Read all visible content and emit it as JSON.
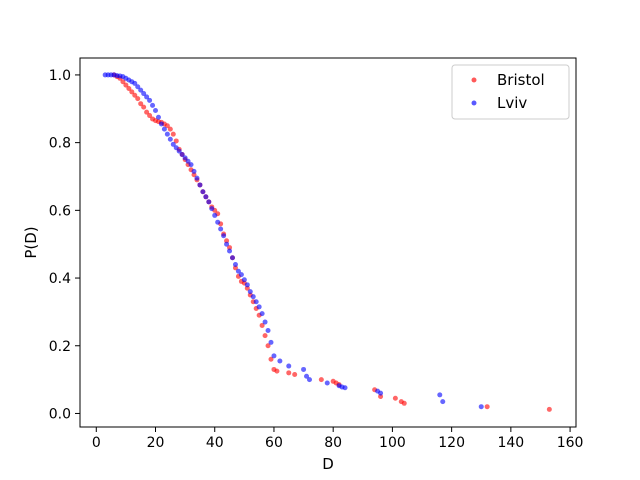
{
  "chart_data": {
    "type": "scatter",
    "title": "",
    "xlabel": "D",
    "ylabel": "P(D)",
    "xlim": [
      -5.5,
      162
    ],
    "ylim": [
      -0.04,
      1.05
    ],
    "xticks": [
      0,
      20,
      40,
      60,
      80,
      100,
      120,
      140,
      160
    ],
    "yticks": [
      0.0,
      0.2,
      0.4,
      0.6,
      0.8,
      1.0
    ],
    "grid": false,
    "legend_position": "top-right",
    "series": [
      {
        "name": "Bristol",
        "color": "#ff0000",
        "x": [
          6,
          7,
          8,
          9,
          10,
          11,
          12,
          13,
          14,
          15,
          16,
          17,
          18,
          19,
          20,
          21,
          22,
          23,
          24,
          25,
          26,
          27,
          28,
          29,
          30,
          31,
          32,
          33,
          34,
          35,
          36,
          37,
          38,
          39,
          40,
          41,
          42,
          43,
          44,
          45,
          46,
          47,
          48,
          49,
          50,
          51,
          52,
          53,
          54,
          55,
          56,
          57,
          58,
          59,
          60,
          61,
          65,
          67,
          76,
          80,
          81,
          82,
          94,
          96,
          101,
          103,
          104,
          132,
          153
        ],
        "y": [
          1.0,
          0.995,
          0.99,
          0.98,
          0.97,
          0.96,
          0.95,
          0.94,
          0.93,
          0.915,
          0.905,
          0.89,
          0.88,
          0.87,
          0.865,
          0.862,
          0.86,
          0.855,
          0.85,
          0.84,
          0.825,
          0.805,
          0.78,
          0.765,
          0.75,
          0.735,
          0.72,
          0.705,
          0.69,
          0.675,
          0.655,
          0.64,
          0.625,
          0.61,
          0.6,
          0.59,
          0.56,
          0.53,
          0.51,
          0.49,
          0.46,
          0.43,
          0.405,
          0.39,
          0.385,
          0.37,
          0.35,
          0.33,
          0.31,
          0.29,
          0.26,
          0.23,
          0.2,
          0.16,
          0.13,
          0.125,
          0.12,
          0.115,
          0.1,
          0.095,
          0.09,
          0.085,
          0.07,
          0.05,
          0.045,
          0.035,
          0.03,
          0.02,
          0.012
        ]
      },
      {
        "name": "Lviv",
        "color": "#0000ff",
        "x": [
          3,
          4,
          5,
          6,
          7,
          8,
          9,
          10,
          11,
          12,
          13,
          14,
          15,
          16,
          17,
          18,
          19,
          20,
          21,
          22,
          23,
          24,
          25,
          26,
          27,
          28,
          29,
          30,
          31,
          32,
          33,
          34,
          35,
          36,
          37,
          38,
          39,
          40,
          41,
          42,
          43,
          44,
          45,
          46,
          47,
          48,
          49,
          50,
          51,
          52,
          53,
          54,
          55,
          56,
          57,
          58,
          59,
          60,
          62,
          65,
          70,
          71,
          72,
          78,
          82,
          83,
          84,
          95,
          96,
          116,
          117,
          130
        ],
        "y": [
          1.0,
          1.0,
          1.0,
          1.0,
          0.998,
          0.997,
          0.995,
          0.99,
          0.985,
          0.98,
          0.975,
          0.965,
          0.955,
          0.945,
          0.935,
          0.925,
          0.91,
          0.895,
          0.875,
          0.855,
          0.84,
          0.825,
          0.81,
          0.795,
          0.785,
          0.775,
          0.765,
          0.755,
          0.745,
          0.735,
          0.715,
          0.695,
          0.675,
          0.655,
          0.64,
          0.625,
          0.605,
          0.585,
          0.565,
          0.545,
          0.525,
          0.5,
          0.48,
          0.46,
          0.44,
          0.42,
          0.41,
          0.395,
          0.38,
          0.36,
          0.345,
          0.33,
          0.315,
          0.295,
          0.27,
          0.245,
          0.21,
          0.17,
          0.155,
          0.14,
          0.13,
          0.11,
          0.1,
          0.09,
          0.082,
          0.078,
          0.076,
          0.066,
          0.06,
          0.055,
          0.035,
          0.02
        ]
      }
    ]
  }
}
